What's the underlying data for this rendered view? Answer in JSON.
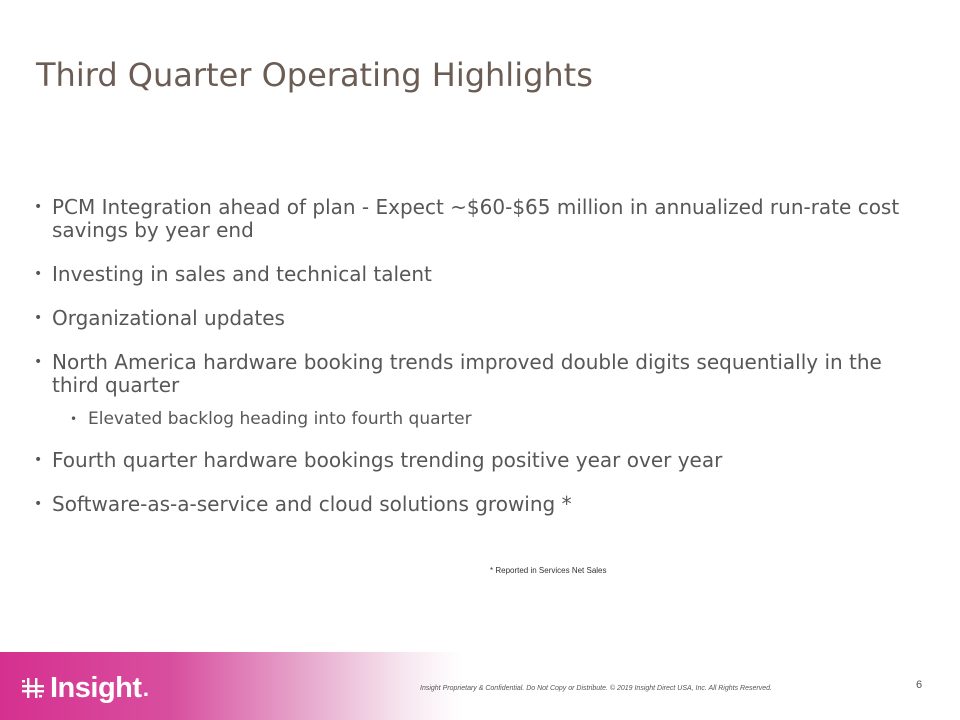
{
  "slide": {
    "title": "Third Quarter Operating Highlights",
    "bullets": [
      "PCM Integration ahead of plan - Expect ~$60-$65 million in annualized run-rate cost savings by year end",
      "Investing in sales and technical talent",
      "Organizational updates",
      "North America hardware booking trends improved double digits sequentially in the third quarter",
      "Elevated backlog heading into fourth quarter",
      "Fourth quarter hardware bookings trending positive year over year",
      "Software-as-a-service and cloud solutions growing *"
    ],
    "bullet_glyph": "•",
    "footnote": "* Reported in Services Net Sales"
  },
  "footer": {
    "logo_text": "Insight",
    "logo_dot": ".",
    "legal": "Insight Proprietary & Confidential. Do Not Copy or Distribute.  © 2019 Insight Direct USA, Inc.  All Rights Reserved.",
    "page_number": "6",
    "brand_color": "#d6308f"
  }
}
